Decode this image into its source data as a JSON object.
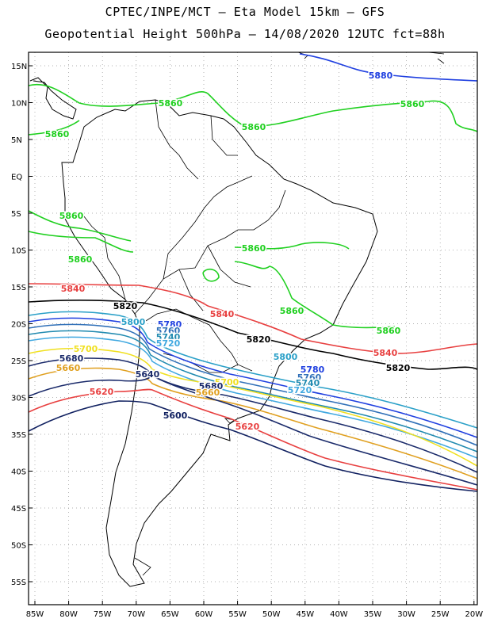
{
  "header": {
    "line1": "CPTEC/INPE/MCT –  Eta Model 15km – GFS",
    "line2": "Geopotential Height 500hPa – 14/08/2020 12UTC fct=88h"
  },
  "map": {
    "lat_ticks": [
      "15N",
      "10N",
      "5N",
      "EQ",
      "5S",
      "10S",
      "15S",
      "20S",
      "25S",
      "30S",
      "35S",
      "40S",
      "45S",
      "50S",
      "55S"
    ],
    "lon_ticks": [
      "85W",
      "80W",
      "75W",
      "70W",
      "65W",
      "60W",
      "55W",
      "50W",
      "45W",
      "40W",
      "35W",
      "30W",
      "25W",
      "20W"
    ],
    "extent": {
      "lon": [
        -86,
        -20
      ],
      "lat": [
        -58,
        16
      ]
    },
    "grid": "dotted"
  },
  "contours": [
    {
      "value": "5880",
      "color": "#2040e0"
    },
    {
      "value": "5860",
      "color": "#20d020"
    },
    {
      "value": "5840",
      "color": "#e84040"
    },
    {
      "value": "5820",
      "color": "#000000"
    },
    {
      "value": "5800",
      "color": "#2aa0c8"
    },
    {
      "value": "5780",
      "color": "#2040e0"
    },
    {
      "value": "5760",
      "color": "#3070b8"
    },
    {
      "value": "5740",
      "color": "#208ab0"
    },
    {
      "value": "5720",
      "color": "#40a8e0"
    },
    {
      "value": "5700",
      "color": "#f0e020"
    },
    {
      "value": "5680",
      "color": "#1a2a6a"
    },
    {
      "value": "5660",
      "color": "#e0a020"
    },
    {
      "value": "5640",
      "color": "#1a2a6a"
    },
    {
      "value": "5620",
      "color": "#e84040"
    },
    {
      "value": "5600",
      "color": "#102060"
    }
  ]
}
